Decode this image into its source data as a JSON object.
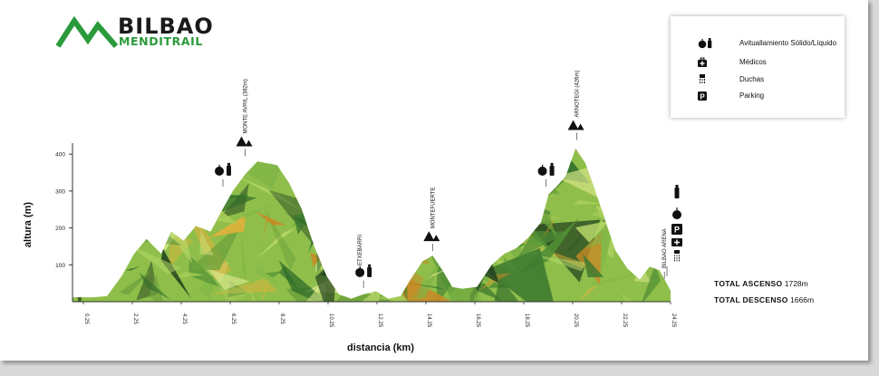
{
  "brand": {
    "word1": "BILBAO",
    "word2": "MENDITRAIL",
    "green": "#2a9a3b"
  },
  "legend": {
    "items": [
      {
        "icon": "apple-bottle-icon",
        "label": "Avituallamiento Sólido/Líquido"
      },
      {
        "icon": "medical-kit-icon",
        "label": "Médicos"
      },
      {
        "icon": "shower-icon",
        "label": "Duchas"
      },
      {
        "icon": "parking-icon",
        "label": "Parking"
      }
    ]
  },
  "totals": {
    "ascent_label": "TOTAL ASCENSO",
    "ascent_value": "1728m",
    "descent_label": "TOTAL DESCENSO",
    "descent_value": "1666m"
  },
  "chart_data": {
    "type": "area",
    "title": "",
    "xlabel": "distancia (km)",
    "ylabel": "altura (m)",
    "xlim": [
      0,
      24.25
    ],
    "ylim": [
      0,
      420
    ],
    "yticks": [
      100,
      200,
      300,
      400
    ],
    "xtick_labels": [
      "0.25",
      "2.25",
      "4.25",
      "6.25",
      "8.25",
      "10.25",
      "12.25",
      "14.25",
      "16.25",
      "18.25",
      "20.25",
      "22.25",
      "24.25"
    ],
    "x": [
      0,
      0.8,
      1.4,
      2.0,
      2.5,
      3.0,
      3.6,
      4.0,
      4.5,
      5.0,
      5.6,
      6.0,
      6.5,
      7.0,
      7.5,
      7.9,
      8.3,
      8.8,
      9.3,
      9.8,
      10.3,
      10.8,
      11.3,
      11.8,
      12.3,
      12.8,
      13.3,
      13.8,
      14.2,
      14.6,
      15.0,
      15.4,
      15.8,
      16.4,
      17.0,
      17.5,
      18.0,
      18.5,
      19.0,
      19.3,
      19.6,
      20.0,
      20.4,
      20.8,
      21.2,
      21.6,
      22.0,
      22.5,
      23.0,
      23.4,
      23.8,
      24.25
    ],
    "y": [
      12,
      12,
      15,
      70,
      130,
      170,
      130,
      190,
      165,
      205,
      190,
      240,
      300,
      345,
      380,
      375,
      370,
      320,
      250,
      150,
      70,
      20,
      8,
      20,
      28,
      8,
      15,
      70,
      110,
      125,
      85,
      40,
      35,
      40,
      100,
      130,
      145,
      175,
      215,
      290,
      310,
      340,
      415,
      375,
      300,
      220,
      140,
      90,
      60,
      95,
      85,
      30
    ],
    "peaks": [
      {
        "x": 7.0,
        "y": 382,
        "label": "MONTE AVRIL (382m)",
        "icon": "mountain-icon"
      },
      {
        "x": 20.45,
        "y": 426,
        "label": "ARNOTEGI (426m)",
        "icon": "mountain-icon"
      },
      {
        "x": 14.6,
        "y": 125,
        "label": "MONTEFUERTE",
        "icon": "mountain-icon"
      },
      {
        "x": 11.65,
        "y": 25,
        "label": "ETXEBARRI",
        "icon": ""
      },
      {
        "x": 24.0,
        "y": 30,
        "label": "BILBAO ARENA",
        "icon": ""
      }
    ],
    "aid_stations": [
      {
        "x": 6.1,
        "y": 300,
        "icon": "apple-bottle-icon"
      },
      {
        "x": 11.8,
        "y": 25,
        "icon": "apple-bottle-icon"
      },
      {
        "x": 19.2,
        "y": 300,
        "icon": "apple-bottle-icon"
      }
    ],
    "finish_icons": [
      "bottle-icon",
      "apple-icon",
      "parking-icon",
      "medical-kit-icon",
      "shower-icon"
    ],
    "grid": false
  }
}
